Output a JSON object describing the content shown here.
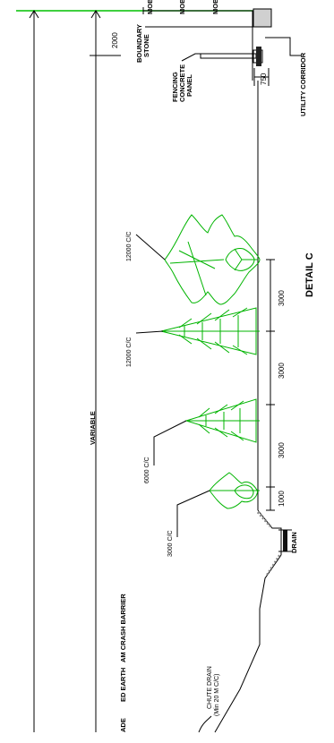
{
  "title": "DETAIL C",
  "labels": {
    "mob": "MOB",
    "boundary_stone": [
      "BOUNDARY",
      "STONE"
    ],
    "fencing": [
      "FENCING",
      "CONCRETE",
      "PANEL"
    ],
    "utility_corridor": "UTILITY CORRIDOR",
    "variable": "VARIABLE",
    "drain": "DRAIN",
    "chute_drain": [
      "CHUTE DRAIN",
      "(Min 20 M C/C)"
    ],
    "crash_barrier": "AM CRASH BARRIER",
    "earth": "ED EARTH",
    "grade": "ADE"
  },
  "dimensions": {
    "top_offset": "2000",
    "corridor": "750",
    "spacing_1": "3000",
    "spacing_2": "3000",
    "spacing_3": "3000",
    "spacing_4": "1000"
  },
  "tree_spacing": {
    "t1": "12000 C/C",
    "t2": "12000 C/C",
    "t3": "6000 C/C",
    "t4": "3000 C/C"
  },
  "colors": {
    "line": "#000000",
    "tree": "#00b400",
    "top_rule": "#00c000"
  }
}
